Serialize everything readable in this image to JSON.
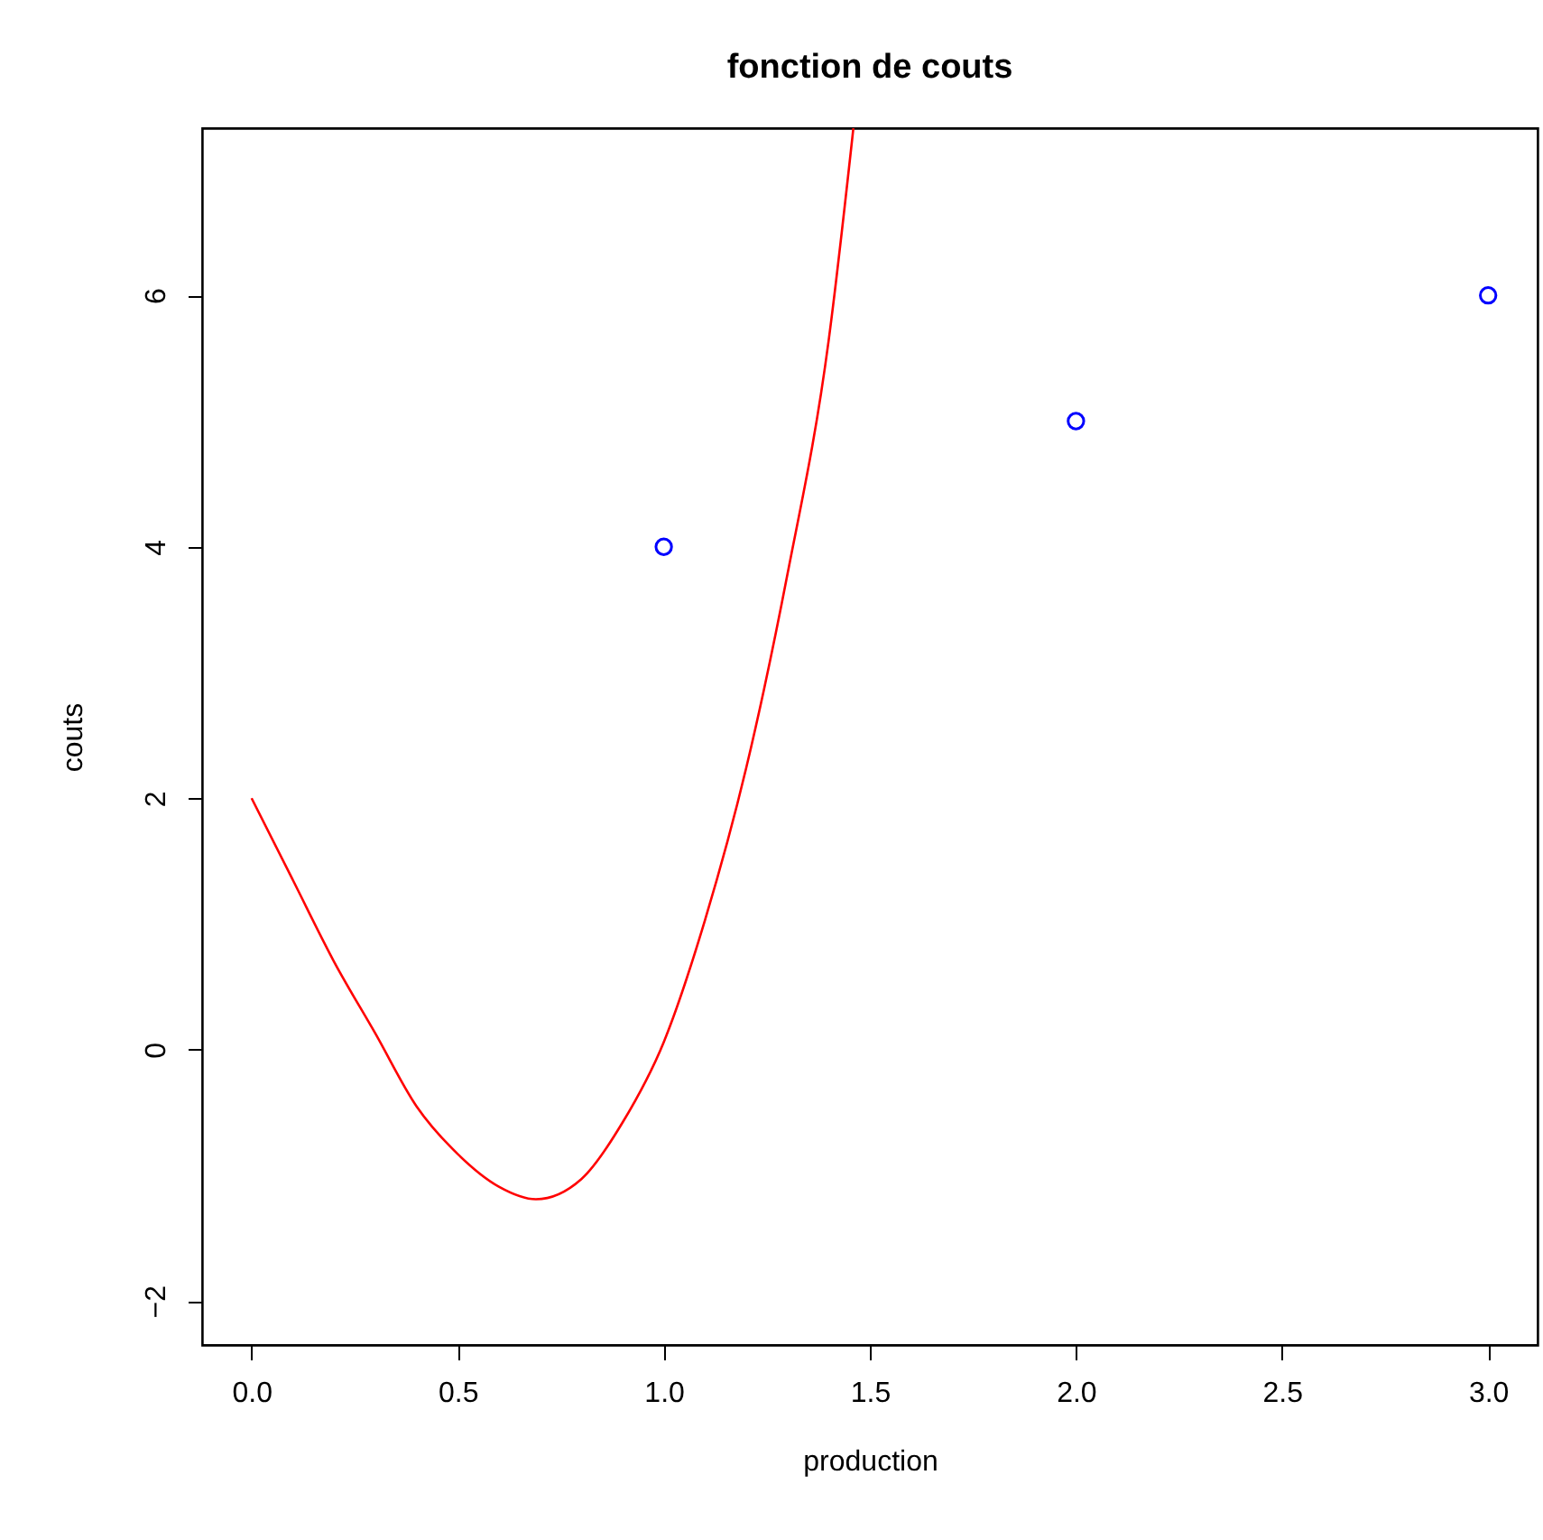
{
  "chart_data": {
    "type": "line",
    "title": "fonction de couts",
    "xlabel": "production",
    "ylabel": "couts",
    "xlim": [
      -0.12,
      3.12
    ],
    "ylim": [
      -2.35,
      7.33
    ],
    "xticks": [
      {
        "value": 0,
        "label": "0.0"
      },
      {
        "value": 0.5,
        "label": "0.5"
      },
      {
        "value": 1,
        "label": "1.0"
      },
      {
        "value": 1.5,
        "label": "1.5"
      },
      {
        "value": 2,
        "label": "2.0"
      },
      {
        "value": 2.5,
        "label": "2.5"
      },
      {
        "value": 3,
        "label": "3.0"
      }
    ],
    "yticks": [
      {
        "value": -2,
        "label": "−2"
      },
      0,
      2,
      4,
      6
    ],
    "grid": false,
    "series": [
      {
        "color": "#ff0000",
        "line_style": "solid",
        "x": [
          0,
          0.1,
          0.2,
          0.3,
          0.4,
          0.5,
          0.6,
          0.69,
          0.8,
          0.9,
          1.0,
          1.1,
          1.2,
          1.3,
          1.4,
          1.46
        ],
        "values": [
          2.0,
          1.35,
          0.7,
          0.13,
          -0.45,
          -0.83,
          -1.09,
          -1.19,
          -1.03,
          -0.58,
          0.06,
          1.03,
          2.24,
          3.78,
          5.64,
          7.33
        ]
      },
      {
        "type": "scatter",
        "color": "#0000ff",
        "marker": "circle",
        "x": [
          1,
          2,
          3
        ],
        "values": [
          4,
          5,
          6
        ]
      }
    ]
  }
}
